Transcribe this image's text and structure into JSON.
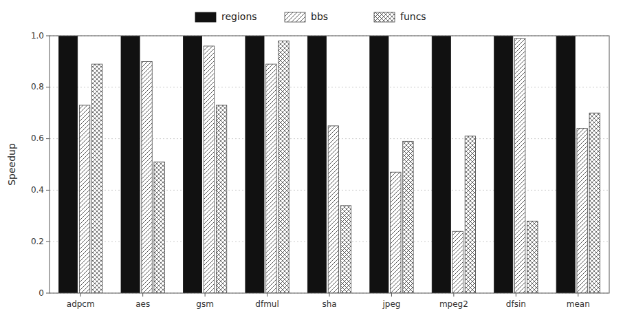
{
  "chart_data": {
    "type": "bar",
    "y_label": "Speedup",
    "categories": [
      "adpcm",
      "aes",
      "gsm",
      "dfmul",
      "sha",
      "jpeg",
      "mpeg2",
      "dfsin",
      "mean"
    ],
    "series": [
      {
        "name": "regions",
        "color": "#111111",
        "values": [
          1.0,
          1.0,
          1.0,
          1.0,
          1.0,
          1.0,
          1.0,
          1.0,
          1.0
        ]
      },
      {
        "name": "bbs",
        "color": "#ffffff",
        "values": [
          0.73,
          0.9,
          0.96,
          0.89,
          0.65,
          0.47,
          0.24,
          0.99,
          0.64
        ]
      },
      {
        "name": "funcs",
        "color": "#ffffff",
        "values": [
          0.89,
          0.51,
          0.73,
          0.98,
          0.34,
          0.59,
          0.61,
          0.28,
          0.7
        ]
      }
    ],
    "ylim": [
      0,
      1.0
    ],
    "yticks": [
      0,
      0.2,
      0.4,
      0.6,
      0.8,
      {
        "value": 1.0,
        "label": "1.0"
      }
    ],
    "grid": true,
    "legend": "top"
  }
}
